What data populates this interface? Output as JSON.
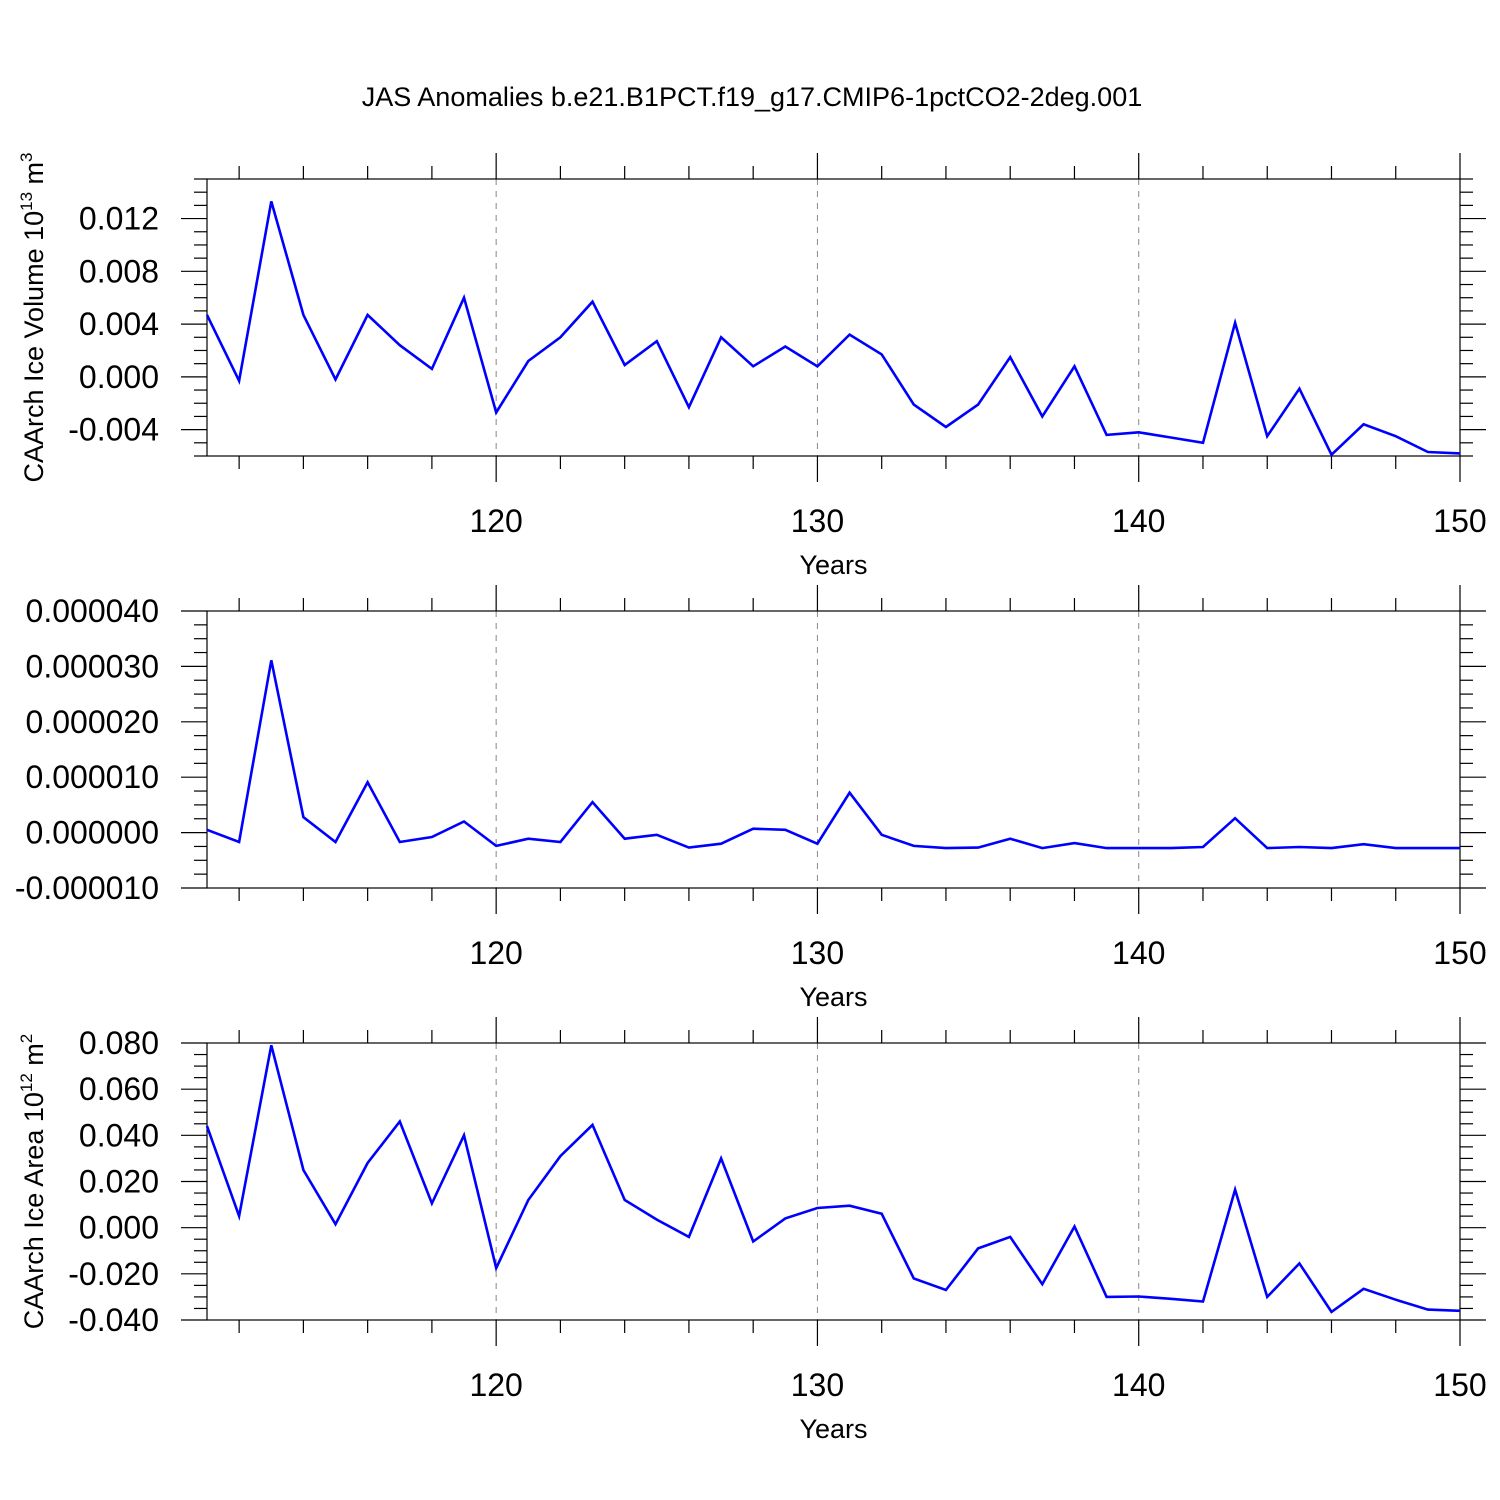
{
  "title": "JAS Anomalies b.e21.B1PCT.f19_g17.CMIP6-1pctCO2-2deg.001",
  "line_color": "#0000ff",
  "chart_data": [
    {
      "type": "line",
      "title": "JAS Anomalies b.e21.B1PCT.f19_g17.CMIP6-1pctCO2-2deg.001",
      "ylabel": "CAArch Ice Volume 10",
      "ylabel_exponent": "13",
      "ylabel_unit": " m",
      "ylabel_unit_exponent": "3",
      "xlabel": "Years",
      "xlim": [
        111,
        150
      ],
      "ylim": [
        -0.006,
        0.015
      ],
      "xticks": [
        120,
        130,
        140,
        150
      ],
      "xtick_labels": [
        "120",
        "130",
        "140",
        "150"
      ],
      "yticks": [
        0.012,
        0.008,
        0.004,
        0.0,
        -0.004
      ],
      "ytick_labels": [
        "0.012",
        "0.008",
        "0.004",
        "0.000",
        "-0.004"
      ],
      "grid": "dashed vertical lines at major x ticks",
      "x": [
        111,
        112,
        113,
        114,
        115,
        116,
        117,
        118,
        119,
        120,
        121,
        122,
        123,
        124,
        125,
        126,
        127,
        128,
        129,
        130,
        131,
        132,
        133,
        134,
        135,
        136,
        137,
        138,
        139,
        140,
        141,
        142,
        143,
        144,
        145,
        146,
        147,
        148,
        149,
        150
      ],
      "values": [
        0.0047,
        -0.0003,
        0.0133,
        0.0047,
        -0.0002,
        0.0047,
        0.0024,
        0.0006,
        0.006,
        -0.0027,
        0.0012,
        0.003,
        0.0057,
        0.0009,
        0.0027,
        -0.0023,
        0.003,
        0.0008,
        0.0023,
        0.0008,
        0.0032,
        0.0017,
        -0.0021,
        -0.0038,
        -0.0021,
        0.0015,
        -0.003,
        0.0008,
        -0.0044,
        -0.0042,
        -0.0046,
        -0.005,
        0.0041,
        -0.0045,
        -0.0009,
        -0.0059,
        -0.0036,
        -0.0045,
        -0.0057,
        -0.0058
      ]
    },
    {
      "type": "line",
      "xlabel": "Years",
      "xlim": [
        111,
        150
      ],
      "ylim": [
        -1e-05,
        4e-05
      ],
      "xticks": [
        120,
        130,
        140,
        150
      ],
      "xtick_labels": [
        "120",
        "130",
        "140",
        "150"
      ],
      "yticks": [
        4e-05,
        3e-05,
        2e-05,
        1e-05,
        0.0,
        -1e-05
      ],
      "ytick_labels": [
        "0.000040",
        "0.000030",
        "0.000020",
        "0.000010",
        "0.000000",
        "-0.000010"
      ],
      "grid": "dashed vertical lines at major x ticks",
      "x": [
        111,
        112,
        113,
        114,
        115,
        116,
        117,
        118,
        119,
        120,
        121,
        122,
        123,
        124,
        125,
        126,
        127,
        128,
        129,
        130,
        131,
        132,
        133,
        134,
        135,
        136,
        137,
        138,
        139,
        140,
        141,
        142,
        143,
        144,
        145,
        146,
        147,
        148,
        149,
        150
      ],
      "values": [
        5e-07,
        -1.7e-06,
        3.11e-05,
        2.8e-06,
        -1.7e-06,
        9.1e-06,
        -1.7e-06,
        -8e-07,
        2e-06,
        -2.4e-06,
        -1.1e-06,
        -1.7e-06,
        5.5e-06,
        -1.1e-06,
        -4e-07,
        -2.7e-06,
        -2e-06,
        7e-07,
        5e-07,
        -2e-06,
        7.2e-06,
        -4e-07,
        -2.4e-06,
        -2.8e-06,
        -2.7e-06,
        -1.1e-06,
        -2.8e-06,
        -1.9e-06,
        -2.8e-06,
        -2.8e-06,
        -2.8e-06,
        -2.6e-06,
        2.6e-06,
        -2.8e-06,
        -2.6e-06,
        -2.8e-06,
        -2.1e-06,
        -2.8e-06,
        -2.8e-06,
        -2.8e-06
      ]
    },
    {
      "type": "line",
      "ylabel": "CAArch Ice Area 10",
      "ylabel_exponent": "12",
      "ylabel_unit": " m",
      "ylabel_unit_exponent": "2",
      "xlabel": "Years",
      "xlim": [
        111,
        150
      ],
      "ylim": [
        -0.04,
        0.08
      ],
      "xticks": [
        120,
        130,
        140,
        150
      ],
      "xtick_labels": [
        "120",
        "130",
        "140",
        "150"
      ],
      "yticks": [
        0.08,
        0.06,
        0.04,
        0.02,
        0.0,
        -0.02,
        -0.04
      ],
      "ytick_labels": [
        "0.080",
        "0.060",
        "0.040",
        "0.020",
        "0.000",
        "-0.020",
        "-0.040"
      ],
      "grid": "dashed vertical lines at major x ticks",
      "x": [
        111,
        112,
        113,
        114,
        115,
        116,
        117,
        118,
        119,
        120,
        121,
        122,
        123,
        124,
        125,
        126,
        127,
        128,
        129,
        130,
        131,
        132,
        133,
        134,
        135,
        136,
        137,
        138,
        139,
        140,
        141,
        142,
        143,
        144,
        145,
        146,
        147,
        148,
        149,
        150
      ],
      "values": [
        0.044,
        0.005,
        0.079,
        0.025,
        0.0015,
        0.028,
        0.046,
        0.0105,
        0.04,
        -0.0175,
        0.012,
        0.031,
        0.0445,
        0.012,
        0.0035,
        -0.004,
        0.03,
        -0.006,
        0.004,
        0.0085,
        0.0095,
        0.006,
        -0.022,
        -0.027,
        -0.009,
        -0.004,
        -0.0245,
        0.0005,
        -0.03,
        -0.0298,
        -0.0308,
        -0.032,
        0.0165,
        -0.03,
        -0.0155,
        -0.0365,
        -0.0265,
        -0.0312,
        -0.0355,
        -0.036
      ]
    }
  ]
}
